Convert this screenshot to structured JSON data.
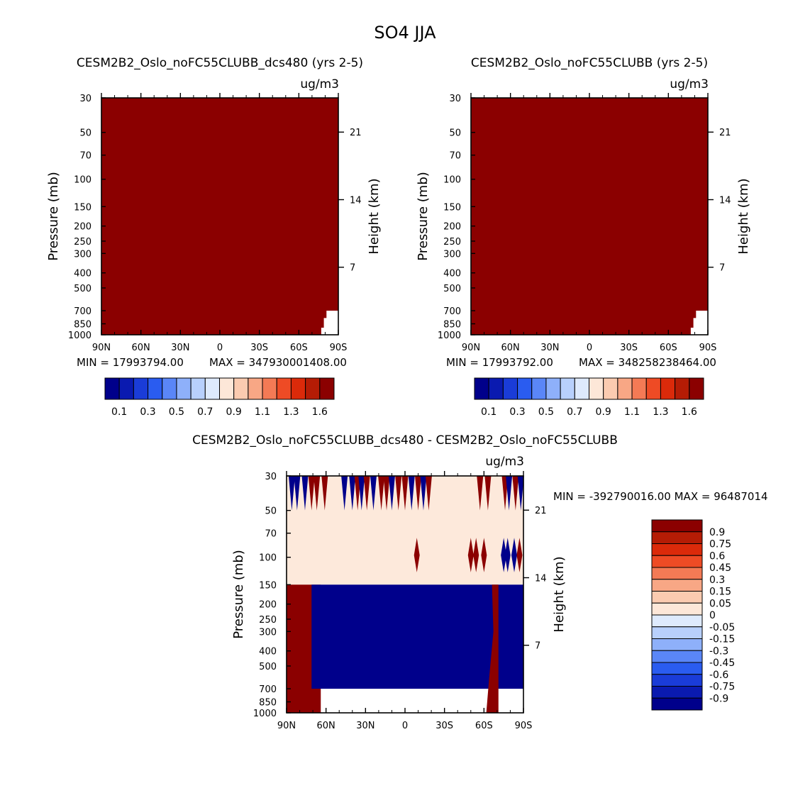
{
  "page_title": "SO4 JJA",
  "colors": {
    "field": "#8b0000",
    "missing": "#ffffff",
    "diff_neutral": "#fde9db",
    "diff_pos": "#8b0000",
    "diff_neg": "#00008b"
  },
  "chart_data": [
    {
      "type": "heatmap",
      "title": "CESM2B2_Oslo_noFC55CLUBB_dcs480 (yrs 2-5)",
      "units": "ug/m3",
      "ylabel": "Pressure (mb)",
      "ylabel_right": "Height (km)",
      "x_ticks": [
        "90N",
        "60N",
        "30N",
        "0",
        "30S",
        "60S",
        "90S"
      ],
      "x_range": [
        90,
        -90
      ],
      "p_ticks": [
        30,
        50,
        70,
        100,
        150,
        200,
        250,
        300,
        400,
        500,
        700,
        850,
        1000
      ],
      "height_ticks": [
        21,
        14,
        7
      ],
      "min_text": "MIN = 17993794.00",
      "max_text": "MAX = 347930001408.00",
      "colorbar_labels": [
        "0.1",
        "0.3",
        "0.5",
        "0.7",
        "0.9",
        "1.1",
        "1.3",
        "1.6"
      ],
      "colorbar_colors": [
        "#00008b",
        "#0a1ab0",
        "#1a3cd8",
        "#2a5cf0",
        "#5a86f7",
        "#8eb0fa",
        "#b8d0fc",
        "#deeafd",
        "#fde7d8",
        "#fbcbb0",
        "#f8a785",
        "#f47a55",
        "#ee4b25",
        "#db2a0a",
        "#b51c05",
        "#8b0000"
      ]
    },
    {
      "type": "heatmap",
      "title": "CESM2B2_Oslo_noFC55CLUBB (yrs 2-5)",
      "units": "ug/m3",
      "ylabel": "Pressure (mb)",
      "ylabel_right": "Height (km)",
      "x_ticks": [
        "90N",
        "60N",
        "30N",
        "0",
        "30S",
        "60S",
        "90S"
      ],
      "x_range": [
        90,
        -90
      ],
      "p_ticks": [
        30,
        50,
        70,
        100,
        150,
        200,
        250,
        300,
        400,
        500,
        700,
        850,
        1000
      ],
      "height_ticks": [
        21,
        14,
        7
      ],
      "min_text": "MIN = 17993792.00",
      "max_text": "MAX = 348258238464.00",
      "colorbar_labels": [
        "0.1",
        "0.3",
        "0.5",
        "0.7",
        "0.9",
        "1.1",
        "1.3",
        "1.6"
      ],
      "colorbar_colors": [
        "#00008b",
        "#0a1ab0",
        "#1a3cd8",
        "#2a5cf0",
        "#5a86f7",
        "#8eb0fa",
        "#b8d0fc",
        "#deeafd",
        "#fde7d8",
        "#fbcbb0",
        "#f8a785",
        "#f47a55",
        "#ee4b25",
        "#db2a0a",
        "#b51c05",
        "#8b0000"
      ]
    },
    {
      "type": "heatmap",
      "title": "CESM2B2_Oslo_noFC55CLUBB_dcs480 - CESM2B2_Oslo_noFC55CLUBB",
      "units": "ug/m3",
      "ylabel": "Pressure (mb)",
      "ylabel_right": "Height (km)",
      "x_ticks": [
        "90N",
        "60N",
        "30N",
        "0",
        "30S",
        "60S",
        "90S"
      ],
      "x_range": [
        90,
        -90
      ],
      "p_ticks": [
        30,
        50,
        70,
        100,
        150,
        200,
        250,
        300,
        400,
        500,
        700,
        850,
        1000
      ],
      "height_ticks": [
        21,
        14,
        7
      ],
      "min_max_text": "MIN = -392790016.00   MAX = 96487014",
      "legend_labels": [
        "0.9",
        "0.75",
        "0.6",
        "0.45",
        "0.3",
        "0.15",
        "0.05",
        "0",
        "-0.05",
        "-0.15",
        "-0.3",
        "-0.45",
        "-0.6",
        "-0.75",
        "-0.9"
      ],
      "legend_colors": [
        "#8b0000",
        "#b51c05",
        "#db2a0a",
        "#ee4b25",
        "#f47a55",
        "#f8a785",
        "#fbcbb0",
        "#fde7d8",
        "#deeafd",
        "#b8d0fc",
        "#8eb0fa",
        "#5a86f7",
        "#2a5cf0",
        "#1a3cd8",
        "#0a1ab0",
        "#00008b"
      ],
      "regions": {
        "neutral_band_p": [
          50,
          150
        ],
        "left_positive_lat": [
          90,
          64
        ],
        "right_negative_lat": [
          71,
          90
        ],
        "right_negative_p": [
          150,
          700
        ]
      }
    }
  ]
}
